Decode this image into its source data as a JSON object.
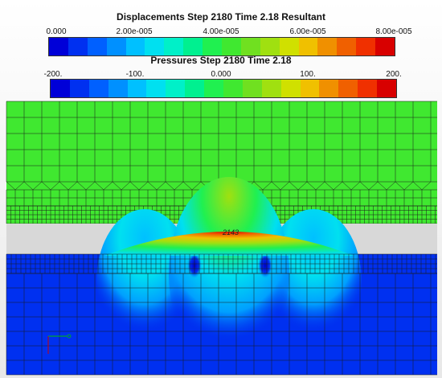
{
  "displacement_legend": {
    "title": "Displacements Step 2180 Time 2.18 Resultant",
    "ticks": [
      "0.000",
      "2.00e-005",
      "4.00e-005",
      "6.00e-005",
      "8.00e-005"
    ]
  },
  "pressure_legend": {
    "title": "Pressures Step 2180 Time 2.18",
    "ticks": [
      "-200.",
      "-100.",
      "0.000",
      "100.",
      "200."
    ]
  },
  "node_label": "2143",
  "colormap": [
    "#0000d8",
    "#0030f0",
    "#0060ff",
    "#0090ff",
    "#00c0ff",
    "#00e0f0",
    "#00f0c8",
    "#00f090",
    "#20f050",
    "#40e830",
    "#70e020",
    "#a0e010",
    "#d0e000",
    "#f0c000",
    "#f09000",
    "#f06000",
    "#f03000",
    "#d80000"
  ]
}
